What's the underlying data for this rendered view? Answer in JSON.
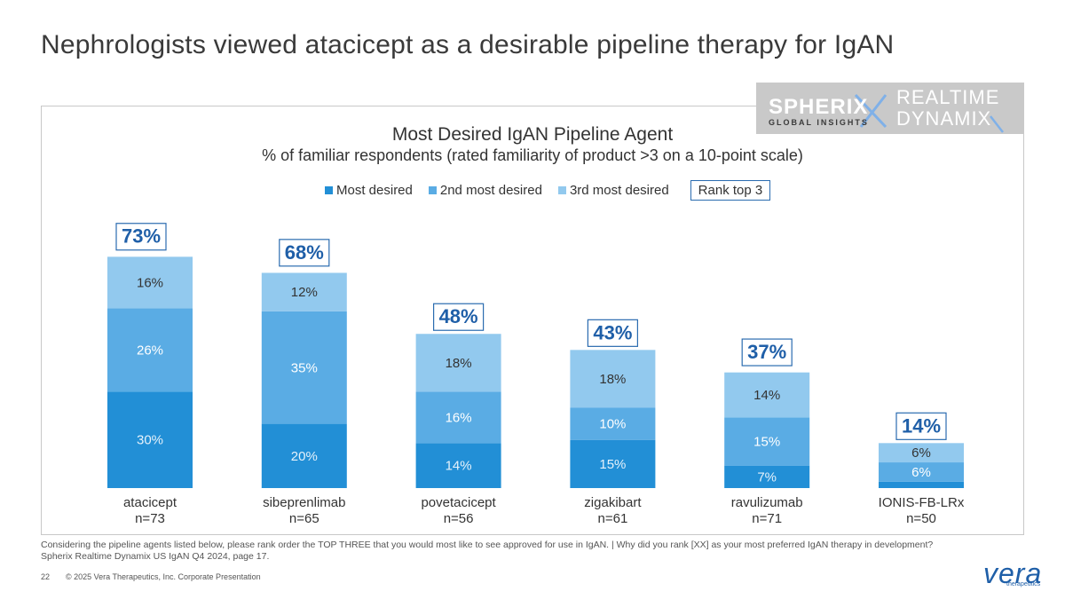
{
  "page": {
    "title": "Nephrologists viewed atacicept as a desirable pipeline therapy for IgAN",
    "footnote_1": "Considering the pipeline agents listed below, please rank order the TOP THREE that you would most like to see approved for use in IgAN. | Why did you rank [XX] as your most preferred IgAN therapy in development?",
    "footnote_2": "Spherix Realtime Dynamix US IgAN Q4 2024, page 17.",
    "page_number": "22",
    "copyright": "© 2025 Vera Therapeutics, Inc. Corporate Presentation"
  },
  "logo": {
    "brand": "SPHERIX",
    "brand_sub": "GLOBAL INSIGHTS",
    "product_line1": "REALTIME",
    "product_line2": "DYNAMIX"
  },
  "company_logo": {
    "name": "vera",
    "sub": "therapeutics"
  },
  "colors": {
    "most_desired": "#228fd6",
    "second_most": "#5aace4",
    "third_most": "#92c9ee",
    "total_box": "#2b6cb0",
    "total_text": "#1f5fa8"
  },
  "chart_data": {
    "type": "bar",
    "stacked": true,
    "title": "Most Desired IgAN Pipeline Agent",
    "subtitle": "% of familiar respondents (rated familiarity of product >3 on a 10-point scale)",
    "categories": [
      "atacicept",
      "sibeprenlimab",
      "povetacicept",
      "zigakibart",
      "ravulizumab",
      "IONIS-FB-LRx"
    ],
    "sample_sizes": [
      "n=73",
      "n=65",
      "n=56",
      "n=61",
      "n=71",
      "n=50"
    ],
    "series": [
      {
        "name": "Most desired",
        "values": [
          30,
          20,
          14,
          15,
          7,
          2
        ],
        "labels": [
          "30%",
          "20%",
          "14%",
          "15%",
          "7%",
          ""
        ]
      },
      {
        "name": "2nd most desired",
        "values": [
          26,
          35,
          16,
          10,
          15,
          6
        ],
        "labels": [
          "26%",
          "35%",
          "16%",
          "10%",
          "15%",
          "6%"
        ]
      },
      {
        "name": "3rd most desired",
        "values": [
          16,
          12,
          18,
          18,
          14,
          6
        ],
        "labels": [
          "16%",
          "12%",
          "18%",
          "18%",
          "14%",
          "6%"
        ]
      }
    ],
    "totals_label": "Rank top 3",
    "totals": [
      "73%",
      "68%",
      "48%",
      "43%",
      "37%",
      "14%"
    ],
    "total_values": [
      73,
      68,
      48,
      43,
      37,
      14
    ],
    "ylim": [
      0,
      100
    ],
    "legend_position": "top-center",
    "grid": false
  }
}
